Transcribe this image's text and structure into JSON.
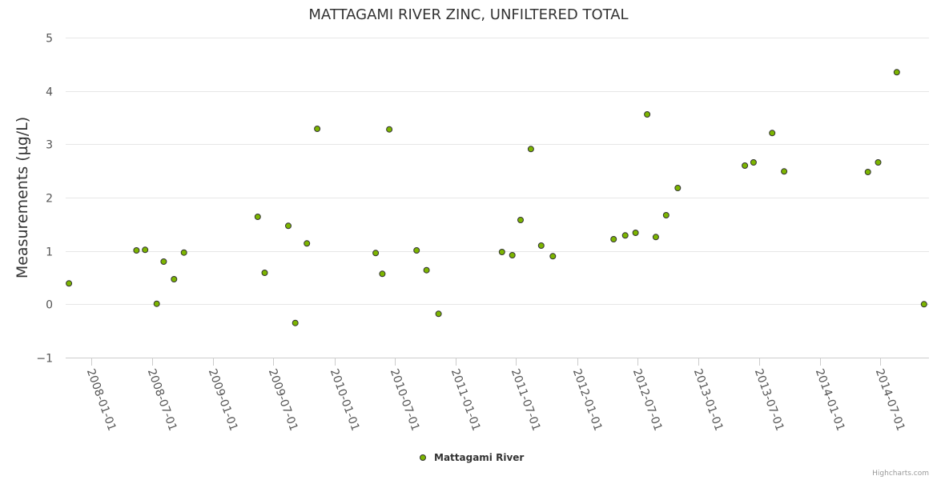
{
  "chart_data": {
    "type": "scatter",
    "title": "MATTAGAMI RIVER ZINC, UNFILTERED TOTAL",
    "ylabel": "Measurements (µg/L)",
    "xlabel": "",
    "ylim": [
      -1,
      5
    ],
    "yticks": [
      -1,
      0,
      1,
      2,
      3,
      4,
      5
    ],
    "xlim": [
      "2007-10-15",
      "2014-11-25"
    ],
    "xticks": [
      "2008-01-01",
      "2008-07-01",
      "2009-01-01",
      "2009-07-01",
      "2010-01-01",
      "2010-07-01",
      "2011-01-01",
      "2011-07-01",
      "2012-01-01",
      "2012-07-01",
      "2013-01-01",
      "2013-07-01",
      "2014-01-01",
      "2014-07-01"
    ],
    "grid": true,
    "legend_position": "bottom-center",
    "series": [
      {
        "name": "Mattagami River",
        "color": "#7cb500",
        "points": [
          {
            "x": "2007-10-25",
            "y": 0.39
          },
          {
            "x": "2008-05-15",
            "y": 1.01
          },
          {
            "x": "2008-06-10",
            "y": 1.02
          },
          {
            "x": "2008-07-15",
            "y": 0.01
          },
          {
            "x": "2008-08-05",
            "y": 0.8
          },
          {
            "x": "2008-09-05",
            "y": 0.47
          },
          {
            "x": "2008-10-05",
            "y": 0.97
          },
          {
            "x": "2009-05-15",
            "y": 1.64
          },
          {
            "x": "2009-06-05",
            "y": 0.59
          },
          {
            "x": "2009-08-15",
            "y": 1.47
          },
          {
            "x": "2009-09-05",
            "y": -0.35
          },
          {
            "x": "2009-10-10",
            "y": 1.14
          },
          {
            "x": "2009-11-10",
            "y": 3.29
          },
          {
            "x": "2010-05-05",
            "y": 0.96
          },
          {
            "x": "2010-05-25",
            "y": 0.57
          },
          {
            "x": "2010-06-15",
            "y": 3.28
          },
          {
            "x": "2010-09-05",
            "y": 1.01
          },
          {
            "x": "2010-10-05",
            "y": 0.64
          },
          {
            "x": "2010-11-10",
            "y": -0.18
          },
          {
            "x": "2011-05-20",
            "y": 0.98
          },
          {
            "x": "2011-06-20",
            "y": 0.92
          },
          {
            "x": "2011-07-15",
            "y": 1.58
          },
          {
            "x": "2011-08-15",
            "y": 2.91
          },
          {
            "x": "2011-09-15",
            "y": 1.1
          },
          {
            "x": "2011-10-20",
            "y": 0.9
          },
          {
            "x": "2012-04-20",
            "y": 1.22
          },
          {
            "x": "2012-05-25",
            "y": 1.29
          },
          {
            "x": "2012-06-25",
            "y": 1.34
          },
          {
            "x": "2012-07-30",
            "y": 3.56
          },
          {
            "x": "2012-08-25",
            "y": 1.26
          },
          {
            "x": "2012-09-25",
            "y": 1.67
          },
          {
            "x": "2012-10-30",
            "y": 2.18
          },
          {
            "x": "2013-05-20",
            "y": 2.6
          },
          {
            "x": "2013-06-15",
            "y": 2.66
          },
          {
            "x": "2013-08-10",
            "y": 3.21
          },
          {
            "x": "2013-09-15",
            "y": 2.49
          },
          {
            "x": "2014-05-25",
            "y": 2.48
          },
          {
            "x": "2014-06-25",
            "y": 2.66
          },
          {
            "x": "2014-08-20",
            "y": 4.35
          },
          {
            "x": "2014-11-10",
            "y": 0.0
          }
        ]
      }
    ]
  },
  "credits": "Highcharts.com"
}
